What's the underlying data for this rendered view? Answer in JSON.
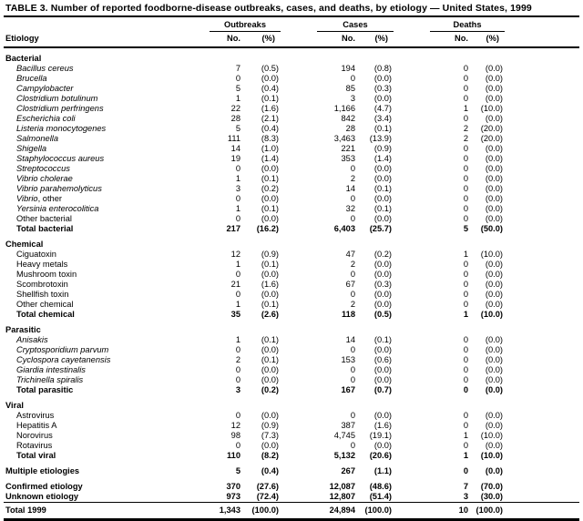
{
  "title": "TABLE 3. Number of reported foodborne-disease outbreaks, cases, and deaths, by etiology — United States, 1999",
  "columns": {
    "etiology": "Etiology",
    "groups": [
      {
        "label": "Outbreaks",
        "sub": [
          "No.",
          "(%)"
        ]
      },
      {
        "label": "Cases",
        "sub": [
          "No.",
          "(%)"
        ]
      },
      {
        "label": "Deaths",
        "sub": [
          "No.",
          "(%)"
        ]
      }
    ]
  },
  "sections": [
    {
      "name": "Bacterial",
      "rows": [
        {
          "label": "Bacillus cereus",
          "italic": true,
          "cells": [
            "7",
            "(0.5)",
            "194",
            "(0.8)",
            "0",
            "(0.0)"
          ]
        },
        {
          "label": "Brucella",
          "italic": true,
          "cells": [
            "0",
            "(0.0)",
            "0",
            "(0.0)",
            "0",
            "(0.0)"
          ]
        },
        {
          "label": "Campylobacter",
          "italic": true,
          "cells": [
            "5",
            "(0.4)",
            "85",
            "(0.3)",
            "0",
            "(0.0)"
          ]
        },
        {
          "label": "Clostridium botulinum",
          "italic": true,
          "cells": [
            "1",
            "(0.1)",
            "3",
            "(0.0)",
            "0",
            "(0.0)"
          ]
        },
        {
          "label": "Clostridium perfringens",
          "italic": true,
          "cells": [
            "22",
            "(1.6)",
            "1,166",
            "(4.7)",
            "1",
            "(10.0)"
          ]
        },
        {
          "label": "Escherichia coli",
          "italic": true,
          "cells": [
            "28",
            "(2.1)",
            "842",
            "(3.4)",
            "0",
            "(0.0)"
          ]
        },
        {
          "label": "Listeria monocytogenes",
          "italic": true,
          "cells": [
            "5",
            "(0.4)",
            "28",
            "(0.1)",
            "2",
            "(20.0)"
          ]
        },
        {
          "label": "Salmonella",
          "italic": true,
          "cells": [
            "111",
            "(8.3)",
            "3,463",
            "(13.9)",
            "2",
            "(20.0)"
          ]
        },
        {
          "label": "Shigella",
          "italic": true,
          "cells": [
            "14",
            "(1.0)",
            "221",
            "(0.9)",
            "0",
            "(0.0)"
          ]
        },
        {
          "label": "Staphylococcus aureus",
          "italic": true,
          "cells": [
            "19",
            "(1.4)",
            "353",
            "(1.4)",
            "0",
            "(0.0)"
          ]
        },
        {
          "label": "Streptococcus",
          "italic": true,
          "cells": [
            "0",
            "(0.0)",
            "0",
            "(0.0)",
            "0",
            "(0.0)"
          ]
        },
        {
          "label": "Vibrio cholerae",
          "italic": true,
          "cells": [
            "1",
            "(0.1)",
            "2",
            "(0.0)",
            "0",
            "(0.0)"
          ]
        },
        {
          "label": "Vibrio parahemolyticus",
          "italic": true,
          "cells": [
            "3",
            "(0.2)",
            "14",
            "(0.1)",
            "0",
            "(0.0)"
          ]
        },
        {
          "label": "Vibrio",
          "label_suffix": ", other",
          "italic": true,
          "cells": [
            "0",
            "(0.0)",
            "0",
            "(0.0)",
            "0",
            "(0.0)"
          ]
        },
        {
          "label": "Yersinia enterocolitica",
          "italic": true,
          "cells": [
            "1",
            "(0.1)",
            "32",
            "(0.1)",
            "0",
            "(0.0)"
          ]
        },
        {
          "label": "Other bacterial",
          "cells": [
            "0",
            "(0.0)",
            "0",
            "(0.0)",
            "0",
            "(0.0)"
          ]
        },
        {
          "label": "Total bacterial",
          "bold": true,
          "cells": [
            "217",
            "(16.2)",
            "6,403",
            "(25.7)",
            "5",
            "(50.0)"
          ]
        }
      ]
    },
    {
      "name": "Chemical",
      "rows": [
        {
          "label": "Ciguatoxin",
          "cells": [
            "12",
            "(0.9)",
            "47",
            "(0.2)",
            "1",
            "(10.0)"
          ]
        },
        {
          "label": "Heavy metals",
          "cells": [
            "1",
            "(0.1)",
            "2",
            "(0.0)",
            "0",
            "(0.0)"
          ]
        },
        {
          "label": "Mushroom toxin",
          "cells": [
            "0",
            "(0.0)",
            "0",
            "(0.0)",
            "0",
            "(0.0)"
          ]
        },
        {
          "label": "Scombrotoxin",
          "cells": [
            "21",
            "(1.6)",
            "67",
            "(0.3)",
            "0",
            "(0.0)"
          ]
        },
        {
          "label": "Shellfish toxin",
          "cells": [
            "0",
            "(0.0)",
            "0",
            "(0.0)",
            "0",
            "(0.0)"
          ]
        },
        {
          "label": "Other chemical",
          "cells": [
            "1",
            "(0.1)",
            "2",
            "(0.0)",
            "0",
            "(0.0)"
          ]
        },
        {
          "label": "Total chemical",
          "bold": true,
          "cells": [
            "35",
            "(2.6)",
            "118",
            "(0.5)",
            "1",
            "(10.0)"
          ]
        }
      ]
    },
    {
      "name": "Parasitic",
      "rows": [
        {
          "label": "Anisakis",
          "italic": true,
          "cells": [
            "1",
            "(0.1)",
            "14",
            "(0.1)",
            "0",
            "(0.0)"
          ]
        },
        {
          "label": "Cryptosporidium parvum",
          "italic": true,
          "cells": [
            "0",
            "(0.0)",
            "0",
            "(0.0)",
            "0",
            "(0.0)"
          ]
        },
        {
          "label": "Cyclospora cayetanensis",
          "italic": true,
          "cells": [
            "2",
            "(0.1)",
            "153",
            "(0.6)",
            "0",
            "(0.0)"
          ]
        },
        {
          "label": "Giardia intestinalis",
          "italic": true,
          "cells": [
            "0",
            "(0.0)",
            "0",
            "(0.0)",
            "0",
            "(0.0)"
          ]
        },
        {
          "label": "Trichinella spiralis",
          "italic": true,
          "cells": [
            "0",
            "(0.0)",
            "0",
            "(0.0)",
            "0",
            "(0.0)"
          ]
        },
        {
          "label": "Total parasitic",
          "bold": true,
          "cells": [
            "3",
            "(0.2)",
            "167",
            "(0.7)",
            "0",
            "(0.0)"
          ]
        }
      ]
    },
    {
      "name": "Viral",
      "rows": [
        {
          "label": "Astrovirus",
          "cells": [
            "0",
            "(0.0)",
            "0",
            "(0.0)",
            "0",
            "(0.0)"
          ]
        },
        {
          "label": "Hepatitis A",
          "cells": [
            "12",
            "(0.9)",
            "387",
            "(1.6)",
            "0",
            "(0.0)"
          ]
        },
        {
          "label": "Norovirus",
          "cells": [
            "98",
            "(7.3)",
            "4,745",
            "(19.1)",
            "1",
            "(10.0)"
          ]
        },
        {
          "label": "Rotavirus",
          "cells": [
            "0",
            "(0.0)",
            "0",
            "(0.0)",
            "0",
            "(0.0)"
          ]
        },
        {
          "label": "Total viral",
          "bold": true,
          "cells": [
            "110",
            "(8.2)",
            "5,132",
            "(20.6)",
            "1",
            "(10.0)"
          ]
        }
      ]
    }
  ],
  "footer_rows": [
    {
      "label": "Multiple etiologies",
      "bold": true,
      "gap_before": true,
      "cells": [
        "5",
        "(0.4)",
        "267",
        "(1.1)",
        "0",
        "(0.0)"
      ]
    },
    {
      "label": "Confirmed etiology",
      "bold": true,
      "gap_before": true,
      "cells": [
        "370",
        "(27.6)",
        "12,087",
        "(48.6)",
        "7",
        "(70.0)"
      ]
    },
    {
      "label": "Unknown etiology",
      "bold": true,
      "cells": [
        "973",
        "(72.4)",
        "12,807",
        "(51.4)",
        "3",
        "(30.0)"
      ]
    },
    {
      "label": "Total 1999",
      "bold": true,
      "final_rule": true,
      "cells": [
        "1,343",
        "(100.0)",
        "24,894",
        "(100.0)",
        "10",
        "(100.0)"
      ]
    }
  ]
}
